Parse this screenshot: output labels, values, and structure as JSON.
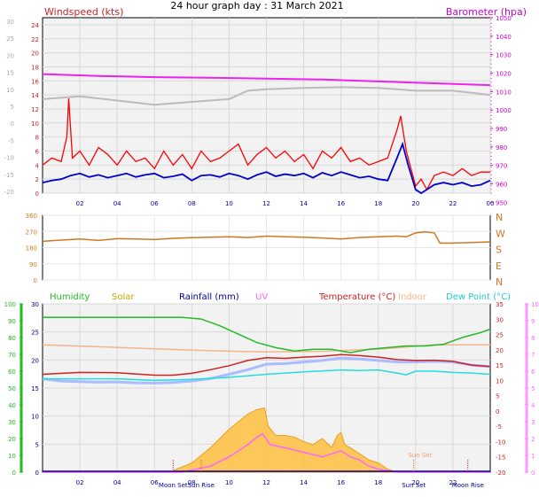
{
  "title": "24 hour graph day : 31 March 2021",
  "colors": {
    "wind_speed": "#ff0000",
    "wind_avg": "#0000cc",
    "gust_grey": "#bbbbbb",
    "barometer": "#ee22ee",
    "direction": "#d07820",
    "humidity": "#22bb22",
    "solar": "#ffc040",
    "rainfall": "#000099",
    "uv": "#ff66ff",
    "temperature": "#cc2222",
    "indoor": "#f4b48c",
    "dewpoint": "#22dddd",
    "windchill": "#aabbff"
  },
  "chart_data": [
    {
      "type": "line",
      "name": "wind-barometer",
      "left_axis_title": "Windspeed (kts)",
      "right_axis_title": "Barometer (hpa)",
      "x_tick_labels": [
        "02",
        "04",
        "06",
        "08",
        "10",
        "12",
        "14",
        "16",
        "18",
        "20",
        "22",
        "00"
      ],
      "left_inner_ticks": [
        "24",
        "22",
        "20",
        "18",
        "16",
        "14",
        "12",
        "10",
        "8",
        "6",
        "4",
        "2",
        "0"
      ],
      "left_outer_ticks": [
        "30",
        "25",
        "20",
        "15",
        "10",
        "5",
        "0",
        "-5",
        "-10",
        "-15",
        "-20"
      ],
      "right_ticks": [
        "1050",
        "1040",
        "1030",
        "1020",
        "1010",
        "1000",
        "990",
        "980",
        "970",
        "960",
        "950"
      ],
      "xlim": [
        0,
        24
      ],
      "wind_ylim": [
        0,
        25
      ],
      "baro_ylim": [
        955,
        1050
      ],
      "series": [
        {
          "key": "barometer",
          "values_x": [
            0,
            3,
            6,
            9,
            12,
            15,
            18,
            21,
            24
          ],
          "values_y": [
            1019.5,
            1018.5,
            1017.8,
            1017.5,
            1017,
            1016.5,
            1015.5,
            1014.5,
            1013.5
          ]
        },
        {
          "key": "grey_trace",
          "values_x": [
            0,
            2,
            4,
            6,
            8,
            10,
            11,
            12,
            14,
            16,
            18,
            19,
            20,
            22,
            24
          ],
          "values_y": [
            13.4,
            13.8,
            13.2,
            12.6,
            13,
            13.4,
            14.6,
            14.8,
            15,
            15.1,
            15,
            14.8,
            14.6,
            14.6,
            14
          ]
        },
        {
          "key": "wind_gust",
          "values_x": [
            0,
            0.5,
            1,
            1.3,
            1.4,
            1.6,
            2,
            2.5,
            3,
            3.5,
            4,
            4.5,
            5,
            5.5,
            6,
            6.5,
            7,
            7.5,
            8,
            8.5,
            9,
            9.5,
            10,
            10.5,
            11,
            11.5,
            12,
            12.5,
            13,
            13.5,
            14,
            14.5,
            15,
            15.5,
            16,
            16.5,
            17,
            17.5,
            18,
            18.5,
            19,
            19.2,
            19.5,
            20,
            20.3,
            20.6,
            21,
            21.5,
            22,
            22.5,
            23,
            23.5,
            24
          ],
          "values_y": [
            4,
            5,
            4.5,
            8,
            13.5,
            5,
            6,
            4,
            6.5,
            5.5,
            4,
            6,
            4.5,
            5,
            3.5,
            6,
            4,
            5.5,
            3.5,
            6,
            4.5,
            5,
            6,
            7,
            4,
            5.5,
            6.5,
            5,
            6,
            4.5,
            5.5,
            3.5,
            6,
            5,
            6.5,
            4.5,
            5,
            4,
            4.5,
            5,
            9,
            11,
            6,
            1,
            2,
            0.5,
            2.5,
            3,
            2.5,
            3.5,
            2.5,
            3,
            3
          ]
        },
        {
          "key": "wind_avg",
          "values_x": [
            0,
            0.5,
            1,
            1.5,
            2,
            2.5,
            3,
            3.5,
            4,
            4.5,
            5,
            5.5,
            6,
            6.5,
            7,
            7.5,
            8,
            8.5,
            9,
            9.5,
            10,
            10.5,
            11,
            11.5,
            12,
            12.5,
            13,
            13.5,
            14,
            14.5,
            15,
            15.5,
            16,
            16.5,
            17,
            17.5,
            18,
            18.5,
            19,
            19.3,
            19.6,
            20,
            20.3,
            20.6,
            21,
            21.5,
            22,
            22.5,
            23,
            23.5,
            24
          ],
          "values_y": [
            1.5,
            1.8,
            2,
            2.5,
            2.8,
            2.3,
            2.6,
            2.2,
            2.5,
            2.8,
            2.3,
            2.6,
            2.8,
            2.2,
            2.4,
            2.7,
            1.8,
            2.5,
            2.6,
            2.3,
            2.8,
            2.5,
            2,
            2.6,
            3,
            2.4,
            2.7,
            2.5,
            2.8,
            2.2,
            2.9,
            2.5,
            3,
            2.6,
            2.2,
            2.4,
            2,
            1.8,
            5,
            7,
            4,
            0.5,
            0,
            0.5,
            1.2,
            1.5,
            1.2,
            1.5,
            1,
            1.2,
            1.8
          ]
        }
      ]
    },
    {
      "type": "line",
      "name": "wind-direction",
      "left_ticks": [
        "360",
        "270",
        "180",
        "90",
        "0"
      ],
      "right_labels": [
        "N",
        "W",
        "S",
        "E",
        "N"
      ],
      "ylim": [
        0,
        360
      ],
      "series": [
        {
          "key": "direction",
          "values_x": [
            0,
            1,
            2,
            3,
            4,
            5,
            6,
            7,
            8,
            9,
            10,
            11,
            12,
            13,
            14,
            15,
            16,
            17,
            18,
            19,
            19.5,
            20,
            20.5,
            21,
            21.3,
            22,
            23,
            24
          ],
          "values_y": [
            215,
            222,
            228,
            220,
            230,
            228,
            225,
            232,
            235,
            238,
            240,
            236,
            244,
            240,
            238,
            234,
            228,
            236,
            240,
            244,
            240,
            262,
            268,
            262,
            205,
            205,
            208,
            212
          ]
        }
      ]
    },
    {
      "type": "area",
      "name": "temp-humidity-solar",
      "legend": [
        "Humidity",
        "Solar",
        "Rainfall (mm)",
        "UV",
        "Temperature (°C)",
        "Indoor",
        "Dew Point (°C)"
      ],
      "humidity_ticks": [
        "100",
        "90",
        "80",
        "70",
        "60",
        "50",
        "40",
        "30",
        "20",
        "10",
        "0"
      ],
      "rain_ticks": [
        "30",
        "25",
        "20",
        "15",
        "10",
        "5",
        "0"
      ],
      "temp_ticks": [
        "35",
        "30",
        "25",
        "20",
        "15",
        "10",
        "5",
        "0",
        "-5",
        "-10",
        "-15",
        "-20"
      ],
      "uv_ticks": [
        "10",
        "9",
        "8",
        "7",
        "6",
        "5",
        "4",
        "3",
        "2",
        "1",
        "0"
      ],
      "x_tick_labels": [
        "02",
        "04",
        "06",
        "08",
        "10",
        "12",
        "14",
        "16",
        "18",
        "20",
        "22"
      ],
      "annotations": [
        "Moon Set",
        "Sun Rise",
        "Sun Set",
        "Moon Rise"
      ],
      "xlim": [
        0,
        24
      ],
      "humidity_ylim": [
        0,
        100
      ],
      "temp_ylim": [
        -20,
        35
      ],
      "series": [
        {
          "key": "humidity",
          "values_x": [
            0,
            3,
            6,
            7.5,
            8.5,
            9.5,
            10.5,
            11.5,
            12.5,
            13.5,
            14.5,
            15.5,
            16.5,
            17.5,
            18.5,
            19.5,
            20.5,
            21.5,
            22.5,
            23.5,
            24
          ],
          "values_y": [
            92,
            92,
            92,
            92,
            91,
            87,
            82,
            77,
            74,
            72,
            73,
            73,
            71,
            73,
            74,
            75,
            75,
            76,
            80,
            83,
            85
          ]
        },
        {
          "key": "indoor",
          "values_x": [
            0,
            3,
            6,
            9,
            12,
            15,
            18,
            21,
            24
          ],
          "values_y": [
            21.6,
            21,
            20.3,
            19.7,
            19.3,
            19.5,
            20.2,
            21.6,
            21.6
          ]
        },
        {
          "key": "temperature",
          "values_x": [
            0,
            2,
            4,
            6,
            7,
            8,
            9,
            10,
            11,
            12,
            13,
            14,
            15,
            16,
            17,
            18,
            19,
            20,
            21,
            22,
            23,
            24
          ],
          "values_y": [
            12,
            12.6,
            12.5,
            11.7,
            11.7,
            12.3,
            13.5,
            14.8,
            16.5,
            17.4,
            17.2,
            17.6,
            17.9,
            18.4,
            18.1,
            17.6,
            16.8,
            16.5,
            16.6,
            16.2,
            15,
            14.5
          ]
        },
        {
          "key": "dewpoint",
          "values_x": [
            0,
            2,
            4,
            6,
            8,
            10,
            12,
            14,
            16,
            17,
            18,
            19,
            19.5,
            20,
            21,
            22,
            23,
            24
          ],
          "values_y": [
            10.5,
            10.5,
            10.5,
            10,
            10.3,
            11,
            12,
            12.8,
            13.4,
            13.2,
            13.4,
            12.4,
            11.8,
            13,
            13,
            12.6,
            12.4,
            12
          ]
        },
        {
          "key": "windchill",
          "values_x": [
            0,
            1,
            2,
            3,
            4,
            5,
            6,
            7,
            8,
            9,
            10,
            11,
            12,
            13,
            14,
            15,
            16,
            17,
            18,
            19,
            20,
            21,
            22,
            23,
            24
          ],
          "values_y": [
            10.5,
            9.8,
            9.6,
            9.4,
            9.5,
            9.2,
            9.1,
            9.3,
            9.8,
            10.6,
            12,
            13.5,
            15.3,
            15.5,
            16,
            16.5,
            17.3,
            17,
            16.5,
            16,
            16,
            16.2,
            16,
            15,
            14.5
          ]
        },
        {
          "key": "solar",
          "values_x": [
            0,
            6.8,
            8,
            9,
            10,
            11,
            11.5,
            11.9,
            12.1,
            12.5,
            13,
            13.5,
            14,
            14.5,
            15,
            15.5,
            15.8,
            16,
            16.2,
            16.5,
            17,
            17.5,
            18,
            18.5,
            19,
            24
          ],
          "values_y": [
            0,
            0,
            3,
            8,
            14,
            19,
            20.5,
            21,
            15,
            12,
            12,
            11.5,
            10,
            9,
            11,
            8,
            12,
            13,
            9,
            8,
            6,
            4,
            3,
            1,
            0,
            0
          ]
        },
        {
          "key": "uv",
          "values_x": [
            0,
            7.5,
            9,
            10,
            11,
            11.5,
            11.8,
            12.2,
            13,
            14,
            15,
            16,
            16.5,
            17,
            17.5,
            18,
            19,
            24
          ],
          "values_y": [
            0,
            0,
            2,
            5,
            9,
            11.5,
            12.5,
            9,
            8,
            6.5,
            5,
            7,
            5,
            4,
            2,
            1,
            0,
            0
          ]
        }
      ]
    }
  ]
}
